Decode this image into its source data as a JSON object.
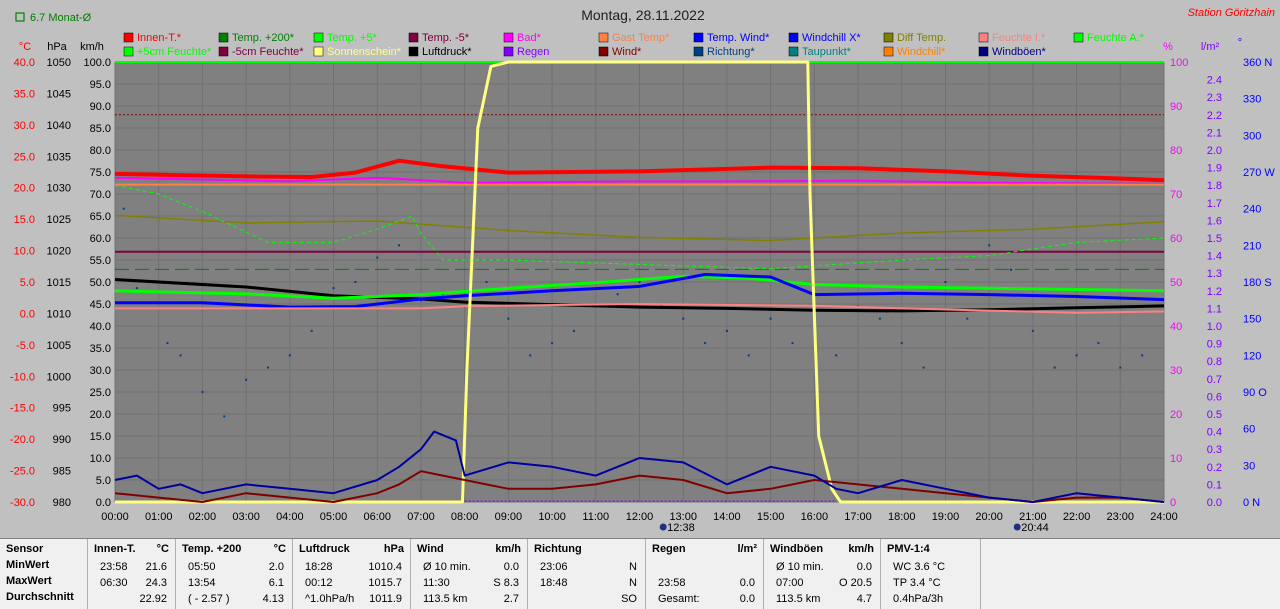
{
  "title": "Montag, 28.11.2022",
  "station": "Station Göritzhain",
  "monthly_avg": "6.7 Monat-Ø",
  "axis_units": {
    "temp": "°C",
    "press": "hPa",
    "wind": "km/h",
    "humid": "%",
    "rain": "l/m²",
    "dir": "°"
  },
  "colors": {
    "plot_bg": "#808080",
    "frame": "#c0c0c0"
  },
  "legend": [
    {
      "label": "Innen-T.*",
      "color": "#ff0000"
    },
    {
      "label": "Temp. +200*",
      "color": "#008000"
    },
    {
      "label": "Temp. +5*",
      "color": "#00ff00"
    },
    {
      "label": "Temp. -5*",
      "color": "#800040"
    },
    {
      "label": "Bad*",
      "color": "#ff00ff"
    },
    {
      "label": "Gast Temp*",
      "color": "#ff8040"
    },
    {
      "label": "Temp. Wind*",
      "color": "#0000ff"
    },
    {
      "label": "Windchill X*",
      "color": "#0000ff"
    },
    {
      "label": "Diff Temp.",
      "color": "#808000"
    },
    {
      "label": "Feuchte I.*",
      "color": "#ff8080"
    },
    {
      "label": "Feuchte A.*",
      "color": "#00ff00"
    },
    {
      "label": "+5cm Feuchte*",
      "color": "#00ff00"
    },
    {
      "label": "-5cm Feuchte*",
      "color": "#800040"
    },
    {
      "label": "Sonnenschein*",
      "color": "#ffff80"
    },
    {
      "label": "Luftdruck*",
      "color": "#000000"
    },
    {
      "label": "Regen",
      "color": "#8000ff"
    },
    {
      "label": "Wind*",
      "color": "#800000"
    },
    {
      "label": "Richtung*",
      "color": "#004080"
    },
    {
      "label": "Taupunkt*",
      "color": "#008080"
    },
    {
      "label": "Windchill*",
      "color": "#ff8000"
    },
    {
      "label": "Windböen*",
      "color": "#000080"
    }
  ],
  "markers": [
    {
      "time": "12:38"
    },
    {
      "time": "20:44"
    }
  ],
  "chart_data": {
    "type": "line",
    "title": "Montag, 28.11.2022",
    "x_ticks": [
      "00:00",
      "01:00",
      "02:00",
      "03:00",
      "04:00",
      "05:00",
      "06:00",
      "07:00",
      "08:00",
      "09:00",
      "10:00",
      "11:00",
      "12:00",
      "13:00",
      "14:00",
      "15:00",
      "16:00",
      "17:00",
      "18:00",
      "19:00",
      "20:00",
      "21:00",
      "22:00",
      "23:00",
      "24:00"
    ],
    "axes": {
      "temp": {
        "unit": "°C",
        "ticks": [
          "40.0",
          "35.0",
          "30.0",
          "25.0",
          "20.0",
          "15.0",
          "10.0",
          "5.0",
          "0.0",
          "-5.0",
          "-10.0",
          "-15.0",
          "-20.0",
          "-25.0",
          "-30.0"
        ],
        "ylim": [
          -30,
          40
        ]
      },
      "press": {
        "unit": "hPa",
        "ticks": [
          "1050",
          "1045",
          "1040",
          "1035",
          "1030",
          "1025",
          "1020",
          "1015",
          "1010",
          "1005",
          "1000",
          "995",
          "990",
          "985",
          "980"
        ],
        "ylim": [
          980,
          1050
        ]
      },
      "wind": {
        "unit": "km/h",
        "ticks": [
          "100.0",
          "95.0",
          "90.0",
          "85.0",
          "80.0",
          "75.0",
          "70.0",
          "65.0",
          "60.0",
          "55.0",
          "50.0",
          "45.0",
          "40.0",
          "35.0",
          "30.0",
          "25.0",
          "20.0",
          "15.0",
          "10.0",
          "5.0",
          "0.0"
        ],
        "ylim": [
          0,
          100
        ]
      },
      "humid": {
        "unit": "%",
        "ticks": [
          "100",
          "90",
          "80",
          "70",
          "60",
          "50",
          "40",
          "30",
          "20",
          "10",
          "0"
        ],
        "ylim": [
          0,
          100
        ]
      },
      "rain": {
        "unit": "l/m²",
        "ticks": [
          "2.4",
          "2.3",
          "2.2",
          "2.1",
          "2.0",
          "1.9",
          "1.8",
          "1.7",
          "1.6",
          "1.5",
          "1.4",
          "1.3",
          "1.2",
          "1.1",
          "1.0",
          "0.9",
          "0.8",
          "0.7",
          "0.6",
          "0.5",
          "0.4",
          "0.3",
          "0.2",
          "0.1",
          "0.0"
        ],
        "ylim": [
          0,
          2.5
        ]
      },
      "dir": {
        "unit": "°",
        "ticks": [
          "360 N",
          "330",
          "300",
          "270 W",
          "240",
          "210",
          "180 S",
          "150",
          "120",
          "90 O",
          "60",
          "30",
          "0 N"
        ],
        "ylim": [
          0,
          360
        ]
      }
    },
    "series": [
      {
        "name": "Innen-T.*",
        "axis": "temp",
        "color": "#ff0000",
        "width": 4,
        "x": [
          0,
          3,
          4.5,
          5.5,
          6.5,
          7.5,
          9,
          12,
          15,
          17,
          19,
          21,
          22.5,
          24
        ],
        "y": [
          22.2,
          21.8,
          21.7,
          22.4,
          24.3,
          23.4,
          22.4,
          22.6,
          23.2,
          23.1,
          22.6,
          21.9,
          21.6,
          21.2
        ]
      },
      {
        "name": "Bad*",
        "axis": "temp",
        "color": "#ff00ff",
        "width": 2,
        "x": [
          0,
          4,
          6,
          8,
          12,
          14,
          17,
          20,
          24
        ],
        "y": [
          21.6,
          21.0,
          21.6,
          20.8,
          21.0,
          21.0,
          21.1,
          20.8,
          20.6
        ]
      },
      {
        "name": "Gast Temp*",
        "axis": "temp",
        "color": "#ff8040",
        "width": 2,
        "x": [
          0,
          24
        ],
        "y": [
          20.5,
          20.5
        ]
      },
      {
        "name": "Diff Temp.",
        "axis": "temp",
        "color": "#808000",
        "width": 1.5,
        "x": [
          0,
          3,
          6,
          9,
          12,
          15,
          18,
          21,
          24
        ],
        "y": [
          15.6,
          14.4,
          14.7,
          13.2,
          12.1,
          11.6,
          12.8,
          13.4,
          14.6
        ]
      },
      {
        "name": "Temp. -5*",
        "axis": "temp",
        "color": "#800040",
        "width": 2,
        "x": [
          0,
          24
        ],
        "y": [
          9.8,
          9.8
        ]
      },
      {
        "name": "Temp. +200*",
        "axis": "temp",
        "color": "#008000",
        "width": 1,
        "dash": "14,6",
        "x": [
          0,
          24
        ],
        "y": [
          7.0,
          7.0
        ]
      },
      {
        "name": "Luftdruck*",
        "axis": "press",
        "color": "#000000",
        "width": 3,
        "x": [
          0,
          3,
          5,
          7,
          8,
          10,
          12,
          14,
          16,
          18,
          20,
          22,
          24
        ],
        "y": [
          1015.4,
          1014.2,
          1012.8,
          1012.3,
          1011.8,
          1011.4,
          1011.0,
          1010.8,
          1010.5,
          1010.4,
          1010.6,
          1010.9,
          1011.2
        ]
      },
      {
        "name": "Temp. +5*",
        "axis": "temp",
        "color": "#00ff00",
        "width": 3,
        "x": [
          0,
          3,
          5,
          7,
          9,
          11,
          13,
          14.5,
          16,
          18,
          20,
          22,
          24
        ],
        "y": [
          3.6,
          3.1,
          2.4,
          3.0,
          4.0,
          4.9,
          5.9,
          5.6,
          4.6,
          4.2,
          4.0,
          3.8,
          3.6
        ]
      },
      {
        "name": "Temp. Wind*",
        "axis": "temp",
        "color": "#0000ff",
        "width": 3,
        "x": [
          0,
          2,
          4,
          5.5,
          7,
          8,
          10,
          12,
          13.5,
          15,
          16,
          18,
          20,
          22,
          24
        ],
        "y": [
          1.7,
          1.7,
          1.0,
          1.1,
          2.3,
          2.8,
          3.6,
          4.3,
          6.2,
          5.8,
          3.0,
          3.2,
          3.0,
          2.7,
          2.2
        ]
      },
      {
        "name": "Feuchte I.*",
        "axis": "humid",
        "color": "#ff8080",
        "width": 2,
        "x": [
          0,
          4,
          7,
          8,
          12,
          16,
          18,
          20,
          22,
          24
        ],
        "y": [
          44,
          44,
          44,
          44.5,
          45,
          44.6,
          44.0,
          43.5,
          43.0,
          43.3
        ]
      },
      {
        "name": "+5cm Feuchte*",
        "axis": "humid",
        "color": "#00ff00",
        "width": 1,
        "dash": "4,3",
        "x": [
          0,
          1,
          2,
          3.5,
          5,
          6,
          6.8,
          7,
          7.5,
          9,
          12,
          15,
          18,
          20,
          22,
          24
        ],
        "y": [
          72,
          70,
          66,
          59,
          59,
          62,
          65,
          61,
          55,
          55,
          54,
          53,
          55,
          56,
          59,
          60
        ]
      },
      {
        "name": "Sonnenschein*",
        "axis": "humid",
        "color": "#ffff80",
        "width": 3,
        "x": [
          0,
          7.95,
          8.05,
          8.3,
          8.6,
          9,
          15.85,
          15.9,
          16.1,
          16.4,
          16.6,
          24
        ],
        "y": [
          0,
          0,
          30,
          85,
          99,
          100,
          100,
          70,
          15,
          3,
          0,
          0
        ]
      },
      {
        "name": "Wind*",
        "axis": "wind",
        "color": "#800000",
        "width": 2,
        "x": [
          0,
          1,
          2,
          3,
          4,
          5,
          6,
          6.5,
          7,
          7.5,
          8,
          9,
          10,
          11,
          12,
          13,
          14,
          15,
          16,
          17,
          18,
          19,
          20,
          21,
          22,
          23,
          24
        ],
        "y": [
          2,
          1,
          0,
          2,
          1,
          0,
          2,
          4,
          7,
          6,
          5,
          3,
          3,
          4,
          6,
          5,
          2,
          3,
          5,
          4,
          3,
          2,
          1,
          0,
          1,
          1,
          0
        ]
      },
      {
        "name": "Windböen*",
        "axis": "wind",
        "color": "#0000a0",
        "width": 2,
        "x": [
          0,
          0.5,
          1,
          1.5,
          2,
          3,
          4,
          5,
          6,
          6.5,
          7,
          7.3,
          7.8,
          8,
          9,
          10,
          11,
          12,
          13,
          14,
          15,
          16,
          16.5,
          17,
          18,
          19,
          20,
          21,
          22,
          23,
          24
        ],
        "y": [
          5,
          6,
          3,
          4,
          2,
          4,
          3,
          2,
          5,
          8,
          12,
          16,
          14,
          6,
          9,
          8,
          6,
          10,
          9,
          4,
          8,
          6,
          3,
          2,
          5,
          3,
          1,
          0,
          2,
          1,
          0
        ]
      }
    ],
    "scatter": {
      "name": "Richtung*",
      "axis": "dir",
      "color": "#004080",
      "x": [
        0.2,
        0.5,
        1.2,
        1.5,
        2.0,
        2.5,
        3.0,
        3.5,
        4.0,
        4.5,
        5.0,
        5.5,
        6.0,
        6.5,
        7.0,
        7.5,
        8.0,
        8.5,
        9.0,
        9.5,
        10.0,
        10.5,
        11.0,
        11.5,
        12.0,
        12.5,
        13.0,
        13.5,
        14.0,
        14.5,
        15.0,
        15.5,
        16.0,
        16.5,
        17.0,
        17.5,
        18.0,
        18.5,
        19.0,
        19.5,
        20.0,
        20.5,
        21.0,
        21.5,
        22.0,
        22.5,
        23.0,
        23.5
      ],
      "y": [
        240,
        175,
        130,
        120,
        90,
        70,
        100,
        110,
        120,
        140,
        175,
        180,
        200,
        210,
        165,
        170,
        160,
        180,
        150,
        120,
        130,
        140,
        160,
        170,
        180,
        160,
        150,
        130,
        140,
        120,
        150,
        130,
        140,
        120,
        160,
        150,
        130,
        110,
        180,
        150,
        210,
        190,
        140,
        110,
        120,
        130,
        110,
        120
      ]
    },
    "humidity_limit": {
      "axis": "humid",
      "value": 88,
      "color": "#800000"
    }
  },
  "stats": {
    "row_labels": [
      "Sensor",
      "MinWert",
      "MaxWert",
      "Durchschnitt"
    ],
    "columns": [
      {
        "head": "Innen-T.",
        "unit": "°C",
        "rows": [
          [
            "23:58",
            "21.6"
          ],
          [
            "06:30",
            "24.3"
          ],
          [
            "",
            "22.92"
          ]
        ]
      },
      {
        "head": "Temp. +200",
        "unit": "°C",
        "rows": [
          [
            "05:50",
            "2.0"
          ],
          [
            "13:54",
            "6.1"
          ],
          [
            "( - 2.57 )",
            "4.13"
          ]
        ]
      },
      {
        "head": "Luftdruck",
        "unit": "hPa",
        "rows": [
          [
            "18:28",
            "1010.4"
          ],
          [
            "00:12",
            "1015.7"
          ],
          [
            "^1.0hPa/h",
            "1011.9"
          ]
        ]
      },
      {
        "head": "Wind",
        "unit": "km/h",
        "rows": [
          [
            "Ø 10 min.",
            "0.0"
          ],
          [
            "11:30",
            "S 8.3"
          ],
          [
            "113.5 km",
            "2.7"
          ]
        ]
      },
      {
        "head": "Richtung",
        "unit": "",
        "rows": [
          [
            "23:06",
            "N"
          ],
          [
            "18:48",
            "N"
          ],
          [
            "",
            "SO"
          ]
        ]
      },
      {
        "head": "Regen",
        "unit": "l/m²",
        "rows": [
          [
            "",
            ""
          ],
          [
            "23:58",
            "0.0"
          ],
          [
            "Gesamt:",
            "0.0"
          ]
        ]
      },
      {
        "head": "Windböen",
        "unit": "km/h",
        "rows": [
          [
            "Ø 10 min.",
            "0.0"
          ],
          [
            "07:00",
            "O 20.5"
          ],
          [
            "113.5 km",
            "4.7"
          ]
        ]
      },
      {
        "head": "PMV-1:4",
        "unit": "",
        "rows": [
          [
            "WC 3.6 °C",
            ""
          ],
          [
            "TP 3.4 °C",
            ""
          ],
          [
            "0.4hPa/3h",
            ""
          ]
        ]
      }
    ]
  }
}
